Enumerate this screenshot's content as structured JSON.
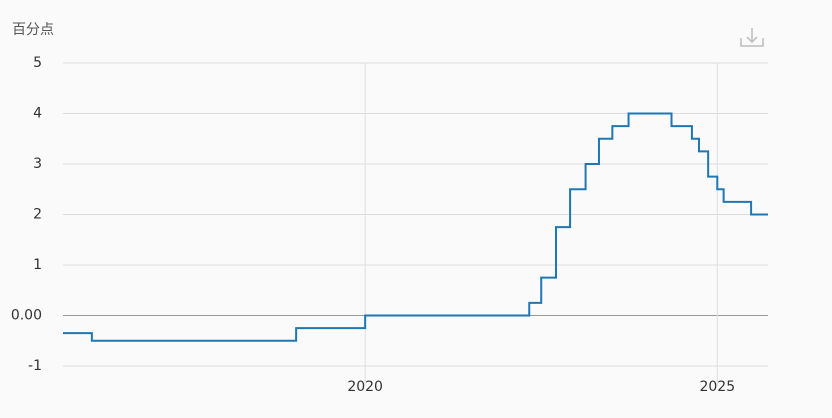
{
  "chart_data": {
    "type": "step",
    "y_label": "百分点",
    "x": [
      2015.71,
      2016.12,
      2019.02,
      2020.0,
      2022.33,
      2022.5,
      2022.71,
      2022.91,
      2023.13,
      2023.32,
      2023.51,
      2023.74,
      2024.35,
      2024.64,
      2024.74,
      2024.87,
      2025.0,
      2025.09,
      2025.48,
      2025.72
    ],
    "series": [
      {
        "color": "#1f77b4",
        "values": [
          -0.35,
          -0.5,
          -0.25,
          0,
          0.25,
          0.75,
          1.75,
          2.5,
          3,
          3.5,
          3.75,
          4,
          3.75,
          3.5,
          3.25,
          2.75,
          2.5,
          2.25,
          2,
          2
        ]
      }
    ],
    "xlim": [
      2015.71,
      2025.72
    ],
    "xticks": [
      2020,
      2025
    ],
    "ylim": [
      -1,
      5
    ],
    "yticks": [
      -1,
      {
        "value": 0,
        "label": "0.00"
      },
      1,
      2,
      3,
      4,
      5
    ],
    "grid": true
  }
}
